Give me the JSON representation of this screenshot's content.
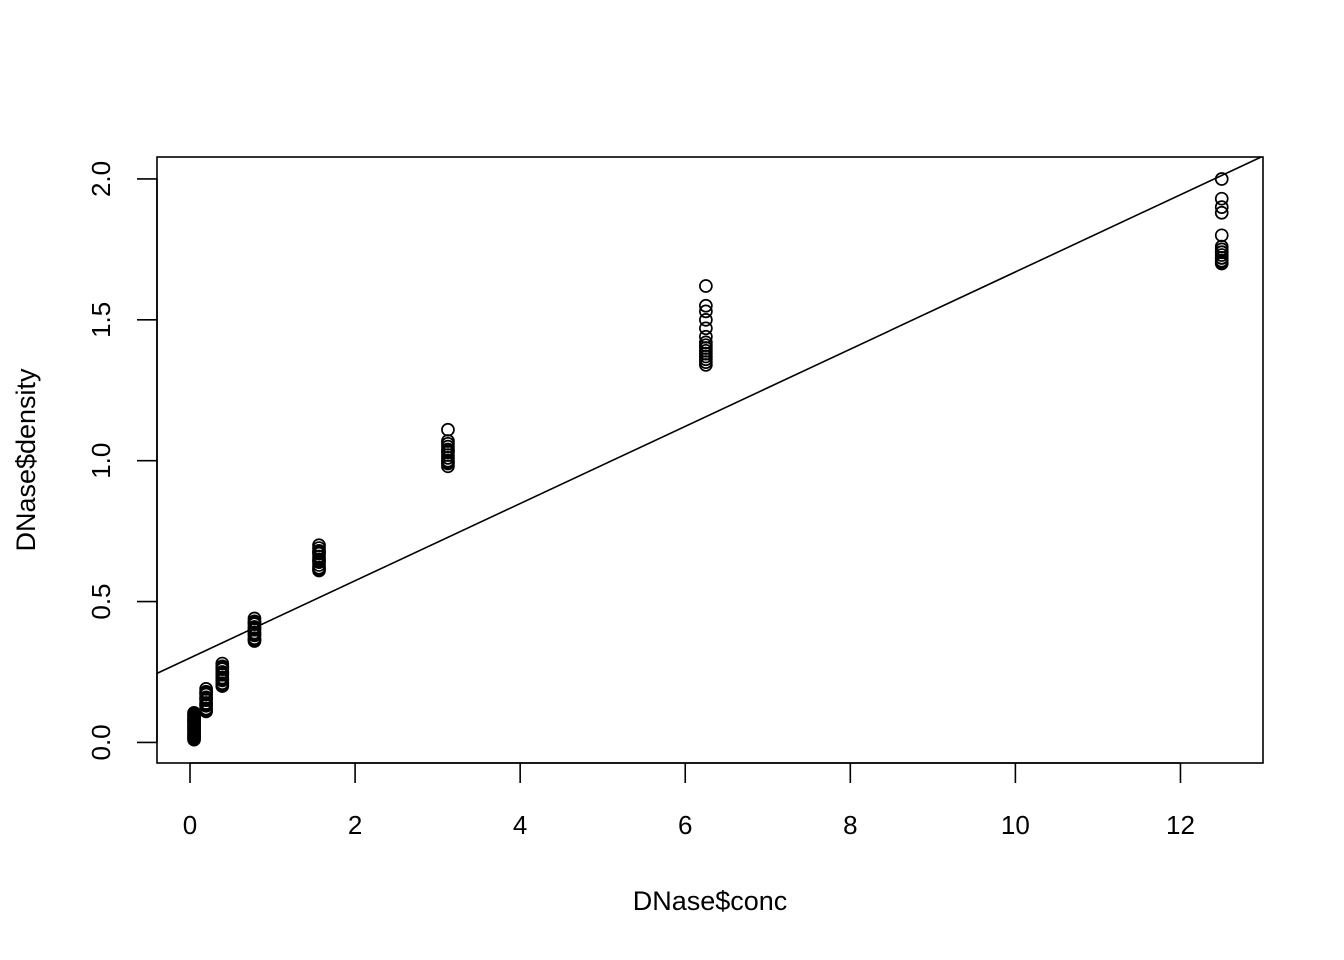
{
  "chart_data": {
    "type": "scatter",
    "xlabel": "DNase$conc",
    "ylabel": "DNase$density",
    "xlim": [
      -0.4,
      13.0
    ],
    "ylim": [
      -0.073,
      2.078
    ],
    "xticks": [
      0,
      2,
      4,
      6,
      8,
      10,
      12
    ],
    "yticks": [
      0.0,
      0.5,
      1.0,
      1.5,
      2.0
    ],
    "xtick_labels": [
      "0",
      "2",
      "4",
      "6",
      "8",
      "10",
      "12"
    ],
    "ytick_labels": [
      "0.0",
      "0.5",
      "1.0",
      "1.5",
      "2.0"
    ],
    "grid": false,
    "legend": "none",
    "marker": "open-circle",
    "color": "#000000",
    "fit_line": {
      "intercept": 0.3,
      "slope": 0.137
    },
    "series": [
      {
        "x": [
          0.049,
          0.049,
          0.049,
          0.049,
          0.049,
          0.049,
          0.049,
          0.049,
          0.049,
          0.049,
          0.049,
          0.049,
          0.049,
          0.049,
          0.049,
          0.049,
          0.049,
          0.049,
          0.049,
          0.049,
          0.049,
          0.049,
          0.195,
          0.195,
          0.195,
          0.195,
          0.195,
          0.195,
          0.195,
          0.195,
          0.195,
          0.195,
          0.195,
          0.195,
          0.195,
          0.391,
          0.391,
          0.391,
          0.391,
          0.391,
          0.391,
          0.391,
          0.391,
          0.391,
          0.391,
          0.391,
          0.391,
          0.391,
          0.781,
          0.781,
          0.781,
          0.781,
          0.781,
          0.781,
          0.781,
          0.781,
          0.781,
          0.781,
          0.781,
          0.781,
          0.781,
          1.563,
          1.563,
          1.563,
          1.563,
          1.563,
          1.563,
          1.563,
          1.563,
          1.563,
          1.563,
          1.563,
          1.563,
          1.563,
          3.125,
          3.125,
          3.125,
          3.125,
          3.125,
          3.125,
          3.125,
          3.125,
          3.125,
          3.125,
          3.125,
          3.125,
          3.125,
          6.25,
          6.25,
          6.25,
          6.25,
          6.25,
          6.25,
          6.25,
          6.25,
          6.25,
          6.25,
          6.25,
          6.25,
          6.25,
          6.25,
          6.25,
          12.5,
          12.5,
          12.5,
          12.5,
          12.5,
          12.5,
          12.5,
          12.5,
          12.5,
          12.5,
          12.5,
          12.5,
          12.5,
          12.5,
          12.5
        ],
        "y": [
          0.01,
          0.02,
          0.03,
          0.04,
          0.05,
          0.06,
          0.07,
          0.08,
          0.09,
          0.1,
          0.015,
          0.025,
          0.035,
          0.045,
          0.055,
          0.065,
          0.075,
          0.085,
          0.095,
          0.105,
          0.02,
          0.08,
          0.11,
          0.12,
          0.13,
          0.14,
          0.15,
          0.16,
          0.17,
          0.18,
          0.19,
          0.115,
          0.135,
          0.155,
          0.175,
          0.2,
          0.21,
          0.22,
          0.23,
          0.24,
          0.25,
          0.26,
          0.27,
          0.28,
          0.205,
          0.225,
          0.245,
          0.265,
          0.36,
          0.37,
          0.38,
          0.39,
          0.4,
          0.41,
          0.42,
          0.43,
          0.44,
          0.365,
          0.385,
          0.405,
          0.425,
          0.61,
          0.62,
          0.63,
          0.64,
          0.65,
          0.66,
          0.67,
          0.68,
          0.69,
          0.7,
          0.615,
          0.645,
          0.675,
          0.98,
          0.99,
          1.0,
          1.01,
          1.02,
          1.03,
          1.04,
          1.05,
          1.06,
          1.07,
          1.11,
          0.995,
          1.035,
          1.34,
          1.35,
          1.36,
          1.37,
          1.38,
          1.39,
          1.4,
          1.41,
          1.42,
          1.44,
          1.47,
          1.5,
          1.53,
          1.55,
          1.62,
          1.7,
          1.71,
          1.72,
          1.73,
          1.74,
          1.75,
          1.76,
          1.72,
          1.74,
          1.8,
          1.88,
          1.9,
          1.93,
          2.0,
          1.705
        ]
      }
    ]
  }
}
